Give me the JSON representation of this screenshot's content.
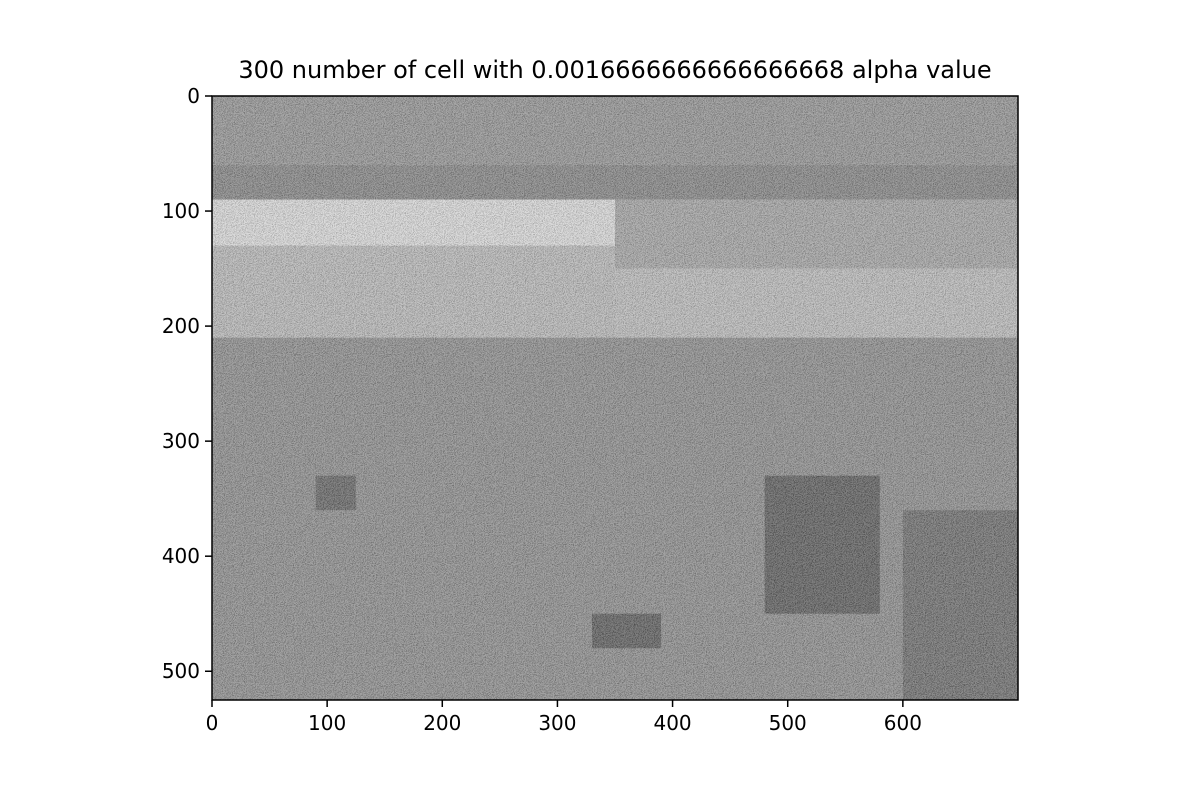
{
  "chart_data": {
    "type": "heatmap",
    "title": "300 number of cell with 0.0016666666666666668 alpha value",
    "xlabel": "",
    "ylabel": "",
    "colormap": "grayscale",
    "xlim": [
      0,
      700
    ],
    "ylim": [
      525,
      0
    ],
    "y_inverted": true,
    "grid": false,
    "x_ticks": [
      0,
      100,
      200,
      300,
      400,
      500,
      600
    ],
    "x_tick_labels": [
      "0",
      "100",
      "200",
      "300",
      "400",
      "500",
      "600"
    ],
    "y_ticks": [
      0,
      100,
      200,
      300,
      400,
      500
    ],
    "y_tick_labels": [
      "0",
      "100",
      "200",
      "300",
      "400",
      "500"
    ],
    "regions": [
      {
        "x": [
          0,
          700
        ],
        "y": [
          0,
          60
        ],
        "gray": 0.55
      },
      {
        "x": [
          0,
          700
        ],
        "y": [
          60,
          90
        ],
        "gray": 0.45
      },
      {
        "x": [
          350,
          700
        ],
        "y": [
          90,
          150
        ],
        "gray": 0.65
      },
      {
        "x": [
          0,
          350
        ],
        "y": [
          130,
          210
        ],
        "gray": 0.78
      },
      {
        "x": [
          350,
          700
        ],
        "y": [
          150,
          210
        ],
        "gray": 0.8
      },
      {
        "x": [
          0,
          700
        ],
        "y": [
          210,
          525
        ],
        "gray": 0.5
      },
      {
        "x": [
          90,
          125
        ],
        "y": [
          330,
          360
        ],
        "gray": 0.25
      },
      {
        "x": [
          480,
          580
        ],
        "y": [
          330,
          450
        ],
        "gray": 0.2
      },
      {
        "x": [
          330,
          390
        ],
        "y": [
          450,
          480
        ],
        "gray": 0.2
      },
      {
        "x": [
          600,
          700
        ],
        "y": [
          360,
          525
        ],
        "gray": 0.3
      }
    ]
  }
}
